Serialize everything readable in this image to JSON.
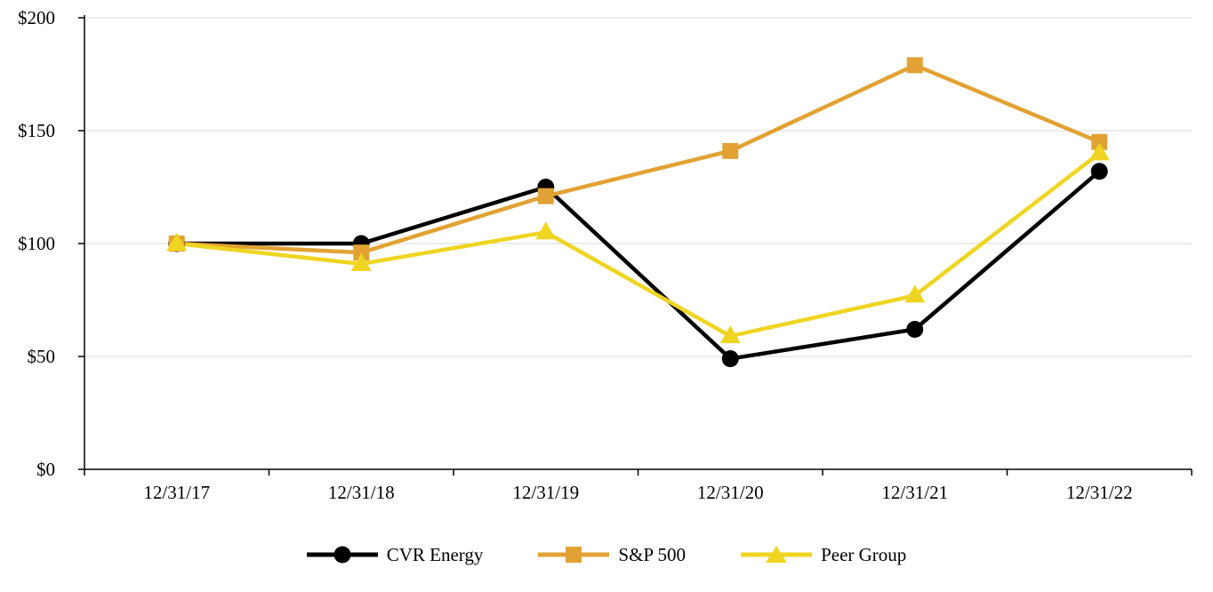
{
  "chart_data": {
    "type": "line",
    "categories": [
      "12/31/17",
      "12/31/18",
      "12/31/19",
      "12/31/20",
      "12/31/21",
      "12/31/22"
    ],
    "series": [
      {
        "name": "CVR Energy",
        "marker": "circle",
        "color": "#000000",
        "values": [
          100,
          100,
          125,
          49,
          62,
          132
        ]
      },
      {
        "name": "S&P 500",
        "marker": "square",
        "color": "#E2A233",
        "values": [
          100,
          96,
          121,
          141,
          179,
          145
        ]
      },
      {
        "name": "Peer Group",
        "marker": "triangle",
        "color": "#EFD521",
        "values": [
          100,
          91,
          105,
          59,
          77,
          140
        ]
      }
    ],
    "ylim": [
      0,
      200
    ],
    "yticks": [
      0,
      50,
      100,
      150,
      200
    ],
    "ytick_labels": [
      "$0",
      "$50",
      "$100",
      "$150",
      "$200"
    ],
    "xlabel": "",
    "ylabel": "",
    "title": "",
    "grid": "horizontal",
    "legend_position": "bottom"
  },
  "colors": {
    "background": "#ffffff",
    "grid": "#d9d9d9",
    "axis": "#000000",
    "text": "#000000"
  }
}
